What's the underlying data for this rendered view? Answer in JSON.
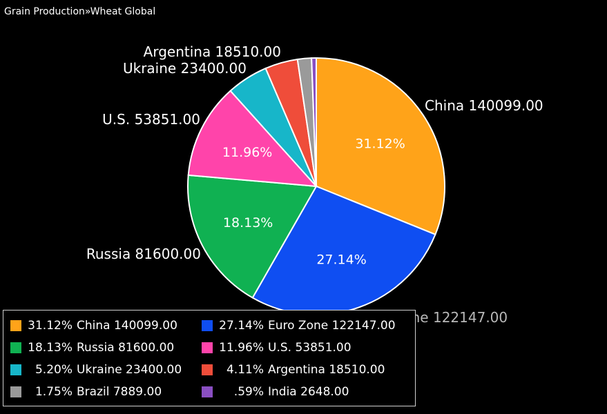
{
  "header": {
    "breadcrumb_root": "Grain Production",
    "breadcrumb_separator": "»",
    "breadcrumb_leaf": "Wheat Global"
  },
  "chart_data": {
    "type": "pie",
    "title": "",
    "legend_position": "bottom-left",
    "slices": [
      {
        "name": "China",
        "value": 140099.0,
        "value_label": "140099.00",
        "pct_label": "31.12%",
        "color": "#ffa319"
      },
      {
        "name": "Euro Zone",
        "value": 122147.0,
        "value_label": "122147.00",
        "pct_label": "27.14%",
        "color": "#0f4ef2"
      },
      {
        "name": "Russia",
        "value": 81600.0,
        "value_label": "81600.00",
        "pct_label": "18.13%",
        "color": "#10b152"
      },
      {
        "name": "U.S.",
        "value": 53851.0,
        "value_label": "53851.00",
        "pct_label": "11.96%",
        "color": "#ff44aa"
      },
      {
        "name": "Ukraine",
        "value": 23400.0,
        "value_label": "23400.00",
        "pct_label": "5.20%",
        "color": "#17b6c9"
      },
      {
        "name": "Argentina",
        "value": 18510.0,
        "value_label": "18510.00",
        "pct_label": "4.11%",
        "color": "#ef4d3a"
      },
      {
        "name": "Brazil",
        "value": 7889.0,
        "value_label": "7889.00",
        "pct_label": "1.75%",
        "color": "#9a9a9a"
      },
      {
        "name": "India",
        "value": 2648.0,
        "value_label": "2648.00",
        "pct_label": ".59%",
        "color": "#8a4fc2"
      }
    ]
  }
}
